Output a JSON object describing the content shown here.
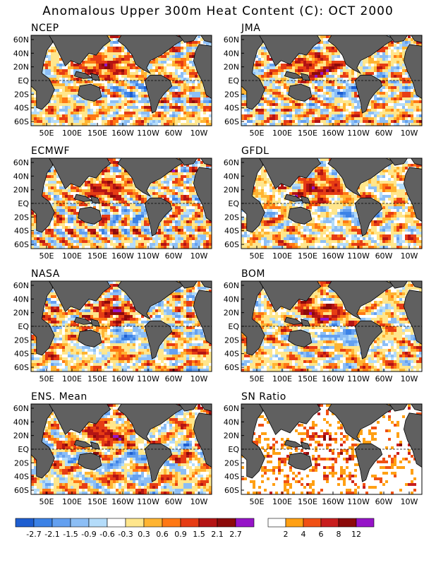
{
  "title": "Anomalous Upper 300m Heat Content (C): OCT 2000",
  "panels": [
    {
      "name": "NCEP"
    },
    {
      "name": "JMA"
    },
    {
      "name": "ECMWF"
    },
    {
      "name": "GFDL"
    },
    {
      "name": "NASA"
    },
    {
      "name": "BOM"
    },
    {
      "name": "ENS. Mean"
    },
    {
      "name": "SN Ratio"
    }
  ],
  "colors": {
    "land": "#606060",
    "anomaly_scale": [
      "#1e5ed0",
      "#3c82e6",
      "#64a0f0",
      "#8cbef5",
      "#b4dcfa",
      "#ffffff",
      "#ffe68c",
      "#ffb432",
      "#ff7814",
      "#e63c14",
      "#b41414",
      "#8c0a0a",
      "#9614c8"
    ],
    "ratio_scale": [
      "#ffffff",
      "#ffa014",
      "#f05014",
      "#c81e1e",
      "#8c0a0a",
      "#9614c8"
    ]
  },
  "chart_data": [
    {
      "type": "heatmap",
      "panel": "NCEP",
      "xlabel": "",
      "ylabel": "",
      "x_ticks": [
        "50E",
        "100E",
        "150E",
        "160W",
        "110W",
        "60W",
        "10W"
      ],
      "y_ticks": [
        "60N",
        "40N",
        "20N",
        "EQ",
        "20S",
        "40S",
        "60S"
      ],
      "legend": {
        "colorbar_anomaly": [
          "-2.7",
          "-2.1",
          "-1.5",
          "-0.9",
          "-0.6",
          "-0.3",
          "0.3",
          "0.6",
          "0.9",
          "1.5",
          "2.1",
          "2.7"
        ]
      }
    },
    {
      "type": "heatmap",
      "panel": "SN Ratio",
      "x_ticks": [
        "50E",
        "100E",
        "150E",
        "160W",
        "110W",
        "60W",
        "10W"
      ],
      "y_ticks": [
        "60N",
        "40N",
        "20N",
        "EQ",
        "20S",
        "40S",
        "60S"
      ],
      "legend": {
        "colorbar_ratio": [
          "2",
          "4",
          "6",
          "8",
          "12"
        ]
      }
    }
  ]
}
